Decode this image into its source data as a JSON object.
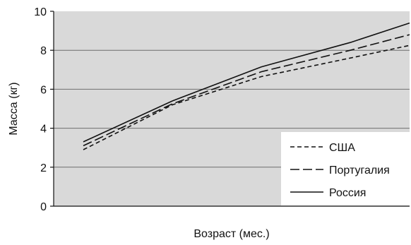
{
  "chart_data": {
    "type": "line",
    "title": "",
    "xlabel": "Возраст (мес.)",
    "ylabel": "Масса (кг)",
    "ylim": [
      0,
      10
    ],
    "yticks": [
      0,
      2,
      4,
      6,
      8,
      10
    ],
    "xlim": [
      0,
      6
    ],
    "grid": true,
    "legend_position": "bottom-right",
    "colors": {
      "plot_background": "#d9d9d9",
      "line": "#111111",
      "grid": "#6e6e6e"
    },
    "series": [
      {
        "name": "США",
        "style": "short-dash",
        "x": [
          0.5,
          2,
          3.5,
          5,
          6
        ],
        "y": [
          2.9,
          5.2,
          6.65,
          7.6,
          8.25
        ]
      },
      {
        "name": "Португалия",
        "style": "long-dash",
        "x": [
          0.5,
          2,
          3.5,
          5,
          6
        ],
        "y": [
          3.1,
          5.25,
          6.9,
          8.0,
          8.8
        ]
      },
      {
        "name": "Россия",
        "style": "solid",
        "x": [
          0.5,
          2,
          3.5,
          5,
          6
        ],
        "y": [
          3.3,
          5.4,
          7.15,
          8.4,
          9.4
        ]
      }
    ]
  }
}
